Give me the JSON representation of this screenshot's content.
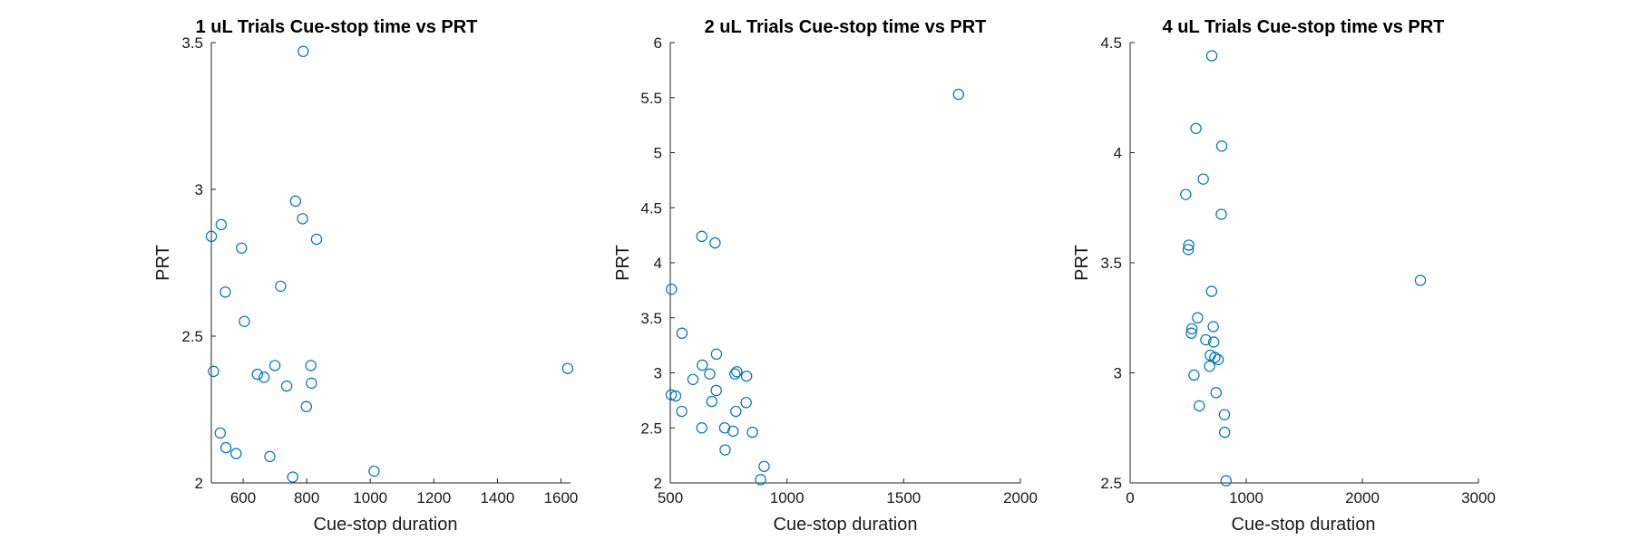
{
  "chart_data": [
    {
      "type": "scatter",
      "title": "1 uL Trials Cue-stop time vs PRT",
      "xlabel": "Cue-stop duration",
      "ylabel": "PRT",
      "xlim": [
        500,
        1630
      ],
      "ylim": [
        2,
        3.5
      ],
      "xticks": [
        "600",
        "800",
        "1000",
        "1200",
        "1400",
        "1600"
      ],
      "yticks": [
        "2",
        "2.5",
        "3",
        "3.5"
      ],
      "marker_color": "#0072BD",
      "grid": false,
      "points": [
        [
          789,
          3.47
        ],
        [
          765,
          2.96
        ],
        [
          787,
          2.9
        ],
        [
          531,
          2.88
        ],
        [
          500,
          2.84
        ],
        [
          831,
          2.83
        ],
        [
          595,
          2.8
        ],
        [
          718,
          2.67
        ],
        [
          544,
          2.65
        ],
        [
          604,
          2.55
        ],
        [
          700,
          2.4
        ],
        [
          813,
          2.4
        ],
        [
          1621,
          2.39
        ],
        [
          507,
          2.38
        ],
        [
          645,
          2.37
        ],
        [
          666,
          2.36
        ],
        [
          815,
          2.34
        ],
        [
          737,
          2.33
        ],
        [
          799,
          2.26
        ],
        [
          528,
          2.17
        ],
        [
          546,
          2.12
        ],
        [
          578,
          2.1
        ],
        [
          684,
          2.09
        ],
        [
          1012,
          2.04
        ],
        [
          756,
          2.02
        ]
      ]
    },
    {
      "type": "scatter",
      "title": "2 uL Trials Cue-stop time vs PRT",
      "xlabel": "Cue-stop duration",
      "ylabel": "PRT",
      "xlim": [
        500,
        2000
      ],
      "ylim": [
        2,
        6
      ],
      "xticks": [
        "500",
        "1000",
        "1500",
        "2000"
      ],
      "yticks": [
        "2",
        "2.5",
        "3",
        "3.5",
        "4",
        "4.5",
        "5",
        "5.5",
        "6"
      ],
      "marker_color": "#0072BD",
      "grid": false,
      "points": [
        [
          1735,
          5.53
        ],
        [
          635,
          4.24
        ],
        [
          692,
          4.18
        ],
        [
          505,
          3.76
        ],
        [
          550,
          3.36
        ],
        [
          698,
          3.17
        ],
        [
          637,
          3.07
        ],
        [
          669,
          2.99
        ],
        [
          785,
          3.01
        ],
        [
          777,
          2.99
        ],
        [
          827,
          2.97
        ],
        [
          597,
          2.94
        ],
        [
          697,
          2.84
        ],
        [
          504,
          2.8
        ],
        [
          523,
          2.79
        ],
        [
          678,
          2.74
        ],
        [
          825,
          2.73
        ],
        [
          549,
          2.65
        ],
        [
          781,
          2.65
        ],
        [
          635,
          2.5
        ],
        [
          733,
          2.5
        ],
        [
          769,
          2.47
        ],
        [
          852,
          2.46
        ],
        [
          735,
          2.3
        ],
        [
          902,
          2.15
        ],
        [
          887,
          2.03
        ]
      ]
    },
    {
      "type": "scatter",
      "title": "4 uL Trials Cue-stop time vs PRT",
      "xlabel": "Cue-stop duration",
      "ylabel": "PRT",
      "xlim": [
        0,
        3000
      ],
      "ylim": [
        2.5,
        4.5
      ],
      "xticks": [
        "0",
        "1000",
        "2000",
        "3000"
      ],
      "yticks": [
        "2.5",
        "3",
        "3.5",
        "4",
        "4.5"
      ],
      "marker_color": "#0072BD",
      "grid": false,
      "points": [
        [
          703,
          4.44
        ],
        [
          567,
          4.11
        ],
        [
          789,
          4.03
        ],
        [
          630,
          3.88
        ],
        [
          479,
          3.81
        ],
        [
          785,
          3.72
        ],
        [
          505,
          3.58
        ],
        [
          500,
          3.56
        ],
        [
          2500,
          3.42
        ],
        [
          702,
          3.37
        ],
        [
          581,
          3.25
        ],
        [
          716,
          3.21
        ],
        [
          532,
          3.2
        ],
        [
          527,
          3.18
        ],
        [
          652,
          3.15
        ],
        [
          720,
          3.14
        ],
        [
          691,
          3.08
        ],
        [
          730,
          3.07
        ],
        [
          758,
          3.06
        ],
        [
          684,
          3.03
        ],
        [
          550,
          2.99
        ],
        [
          740,
          2.91
        ],
        [
          596,
          2.85
        ],
        [
          812,
          2.81
        ],
        [
          814,
          2.73
        ],
        [
          826,
          2.51
        ]
      ]
    }
  ]
}
